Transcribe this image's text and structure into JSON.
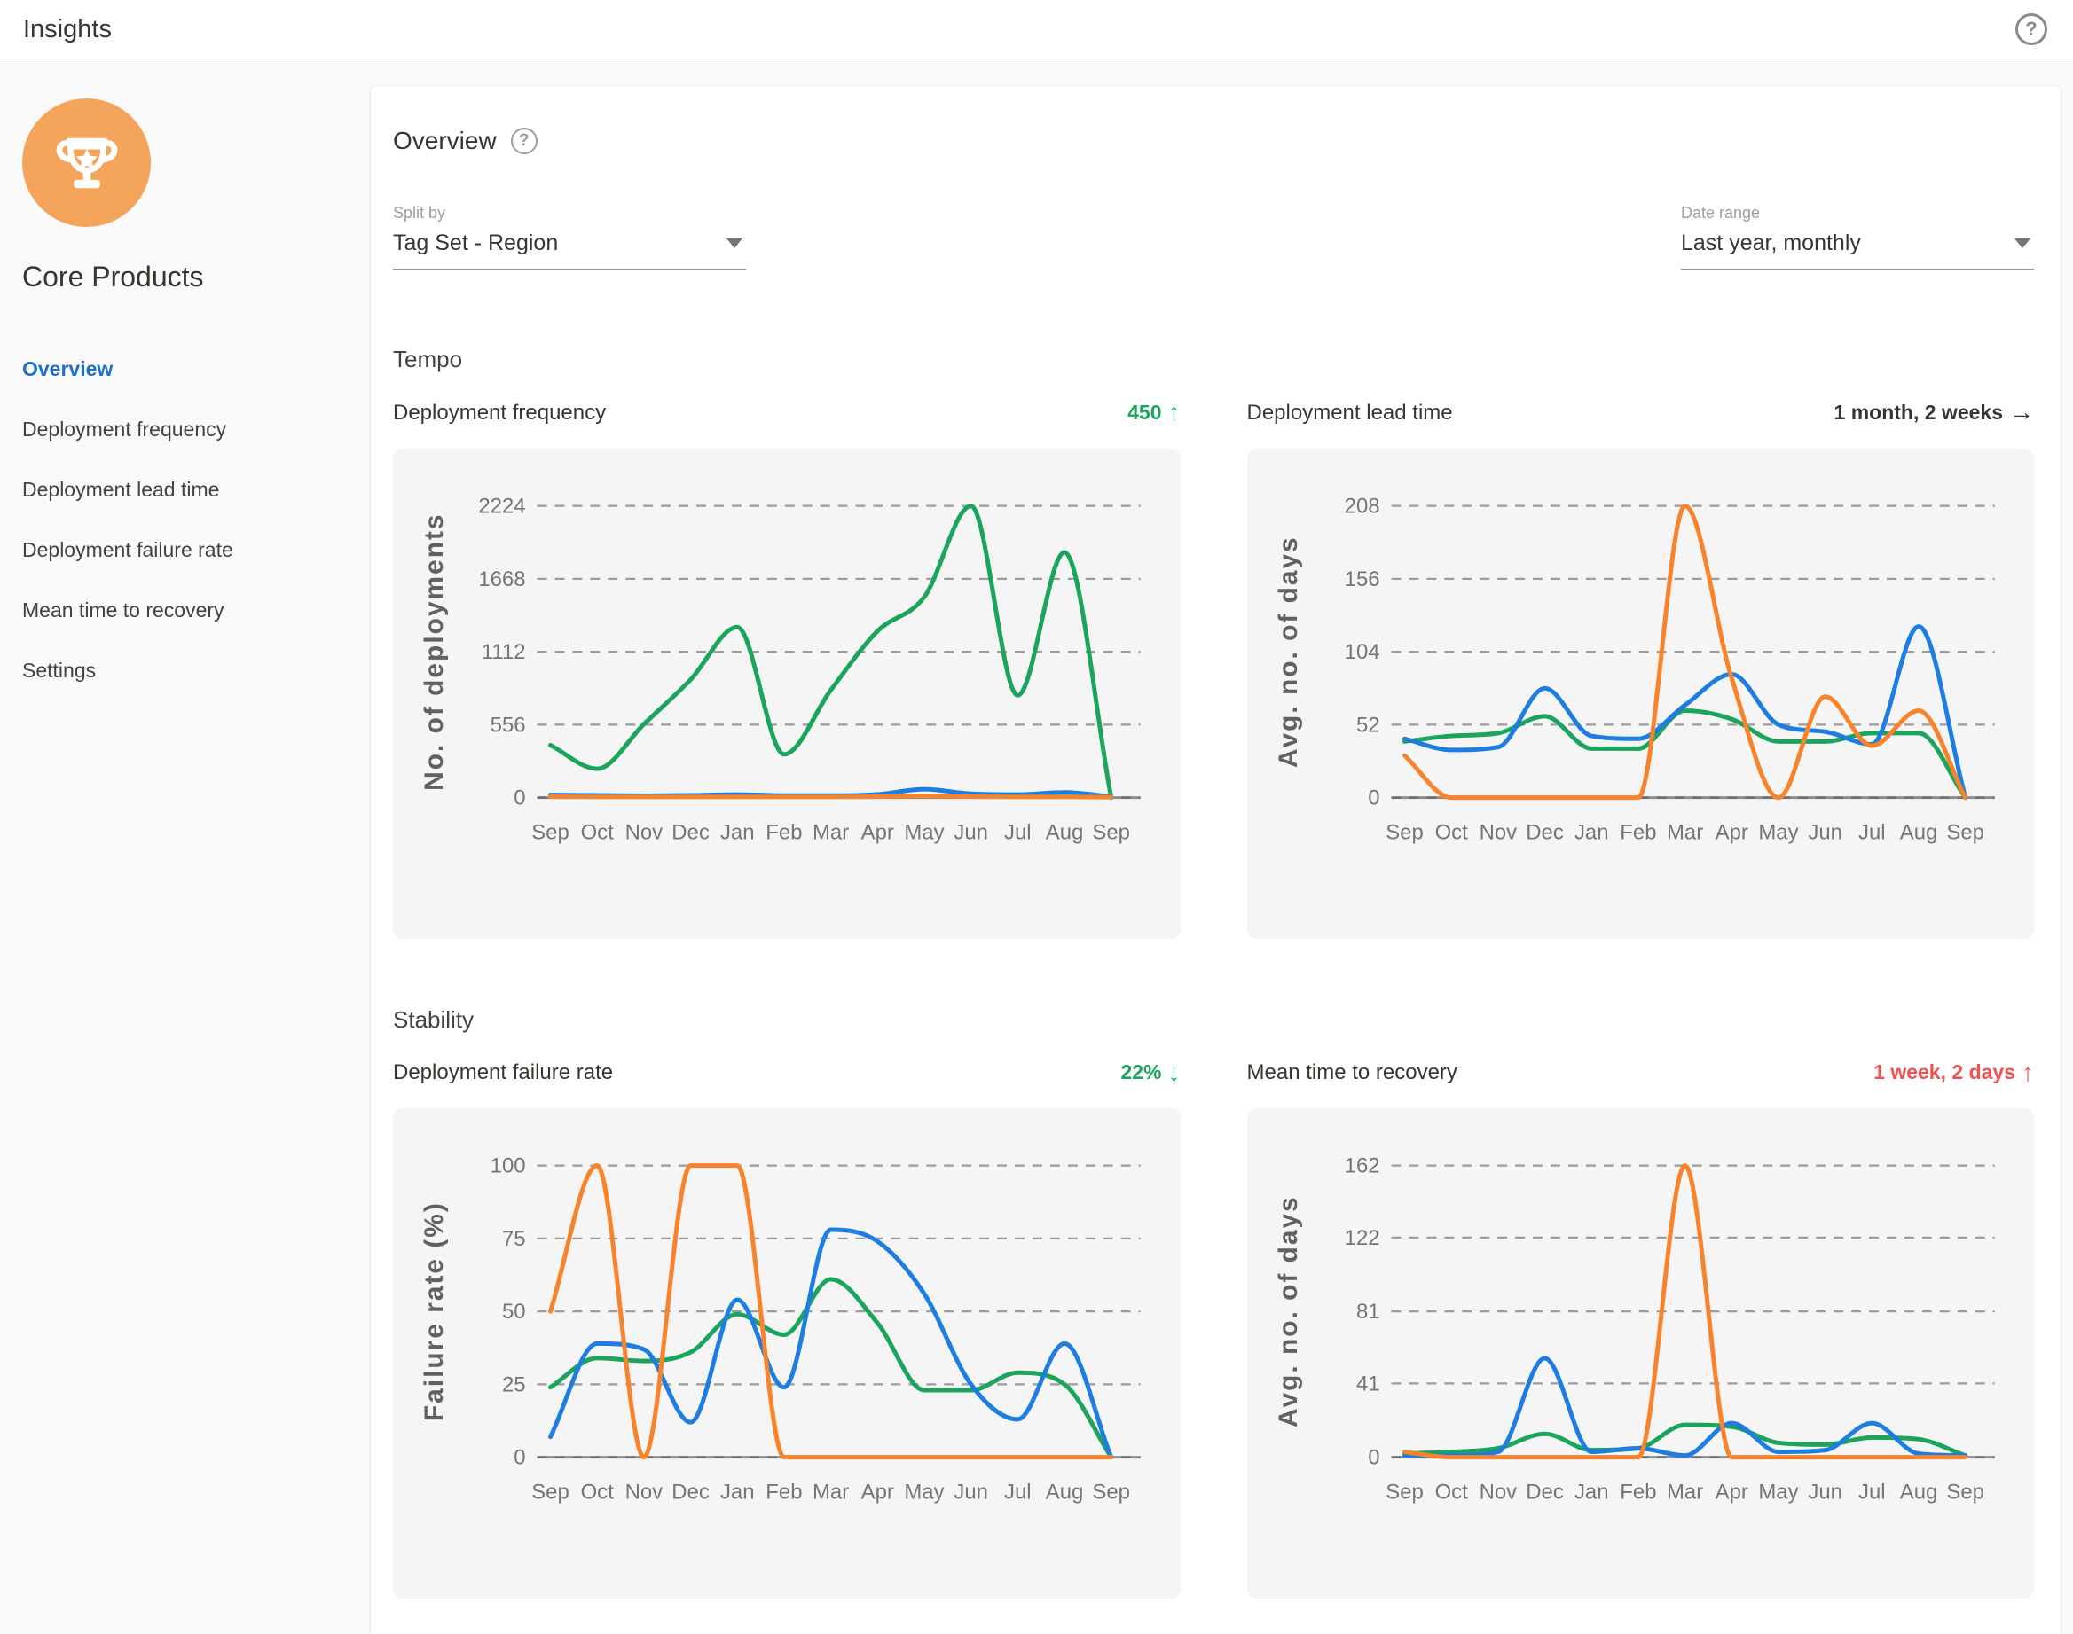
{
  "header": {
    "title": "Insights"
  },
  "sidebar": {
    "title": "Core Products",
    "items": [
      {
        "label": "Overview",
        "active": true
      },
      {
        "label": "Deployment frequency",
        "active": false
      },
      {
        "label": "Deployment lead time",
        "active": false
      },
      {
        "label": "Deployment failure rate",
        "active": false
      },
      {
        "label": "Mean time to recovery",
        "active": false
      },
      {
        "label": "Settings",
        "active": false
      }
    ]
  },
  "overview": {
    "title": "Overview",
    "filters": {
      "split_by": {
        "label": "Split by",
        "value": "Tag Set - Region"
      },
      "date_range": {
        "label": "Date range",
        "value": "Last year, monthly"
      }
    },
    "sections": {
      "tempo": "Tempo",
      "stability": "Stability"
    }
  },
  "palette": {
    "green": "#1aa45c",
    "blue": "#1d7de3",
    "orange": "#f8832b",
    "red": "#ef5252",
    "dark": "#37352f",
    "active_nav": "#1c6fcd",
    "avatar_orange": "#f5a45c"
  },
  "chart_data": [
    {
      "type": "line",
      "section": "Tempo",
      "title": "Deployment frequency",
      "metric": {
        "value": "450",
        "arrow": "↑",
        "color": "#1aa45c"
      },
      "ylabel": "No. of deployments",
      "ylim": [
        0,
        2224
      ],
      "yticks": [
        0,
        556,
        1112,
        1668,
        2224
      ],
      "grid": "dashed-horizontal",
      "legend": false,
      "categories": [
        "Sep",
        "Oct",
        "Nov",
        "Dec",
        "Jan",
        "Feb",
        "Mar",
        "Apr",
        "May",
        "Jun",
        "Jul",
        "Aug",
        "Sep"
      ],
      "series": [
        {
          "name": "green",
          "color": "#1aa45c",
          "values": [
            400,
            220,
            560,
            900,
            1300,
            330,
            820,
            1270,
            1530,
            2224,
            780,
            1870,
            0
          ]
        },
        {
          "name": "blue",
          "color": "#1d7de3",
          "values": [
            20,
            18,
            15,
            18,
            24,
            16,
            16,
            25,
            65,
            30,
            24,
            40,
            8
          ]
        },
        {
          "name": "orange",
          "color": "#f8832b",
          "values": [
            8,
            6,
            6,
            6,
            6,
            6,
            6,
            8,
            10,
            8,
            6,
            6,
            4
          ]
        }
      ]
    },
    {
      "type": "line",
      "section": "Tempo",
      "title": "Deployment lead time",
      "metric": {
        "value": "1 month, 2 weeks",
        "arrow": "→",
        "color": "#37352f"
      },
      "ylabel": "Avg. no. of days",
      "ylim": [
        0,
        208
      ],
      "yticks": [
        0,
        52,
        104,
        156,
        208
      ],
      "grid": "dashed-horizontal",
      "legend": false,
      "categories": [
        "Sep",
        "Oct",
        "Nov",
        "Dec",
        "Jan",
        "Feb",
        "Mar",
        "Apr",
        "May",
        "Jun",
        "Jul",
        "Aug",
        "Sep"
      ],
      "series": [
        {
          "name": "green",
          "color": "#1aa45c",
          "values": [
            40,
            44,
            46,
            58,
            35,
            35,
            62,
            56,
            40,
            40,
            46,
            46,
            0
          ]
        },
        {
          "name": "blue",
          "color": "#1d7de3",
          "values": [
            42,
            34,
            36,
            78,
            44,
            42,
            66,
            88,
            52,
            47,
            38,
            122,
            0
          ]
        },
        {
          "name": "orange",
          "color": "#f8832b",
          "values": [
            30,
            0,
            0,
            0,
            0,
            0,
            208,
            85,
            0,
            72,
            37,
            62,
            0
          ]
        }
      ]
    },
    {
      "type": "line",
      "section": "Stability",
      "title": "Deployment failure rate",
      "metric": {
        "value": "22%",
        "arrow": "↓",
        "color": "#1aa45c"
      },
      "ylabel": "Failure rate (%)",
      "ylim": [
        0,
        100
      ],
      "yticks": [
        0,
        25,
        50,
        75,
        100
      ],
      "grid": "dashed-horizontal",
      "legend": false,
      "categories": [
        "Sep",
        "Oct",
        "Nov",
        "Dec",
        "Jan",
        "Feb",
        "Mar",
        "Apr",
        "May",
        "Jun",
        "Jul",
        "Aug",
        "Sep"
      ],
      "series": [
        {
          "name": "green",
          "color": "#1aa45c",
          "values": [
            24,
            34,
            33,
            36,
            49,
            42,
            61,
            46,
            23,
            23,
            29,
            25,
            0
          ]
        },
        {
          "name": "blue",
          "color": "#1d7de3",
          "values": [
            7,
            39,
            37,
            12,
            54,
            24,
            78,
            74,
            56,
            25,
            13,
            39,
            0
          ]
        },
        {
          "name": "orange",
          "color": "#f8832b",
          "values": [
            50,
            100,
            0,
            100,
            100,
            0,
            0,
            0,
            0,
            0,
            0,
            0,
            0
          ]
        }
      ]
    },
    {
      "type": "line",
      "section": "Stability",
      "title": "Mean time to recovery",
      "metric": {
        "value": "1 week, 2 days",
        "arrow": "↑",
        "color": "#ef5252"
      },
      "ylabel": "Avg. no. of days",
      "ylim": [
        0,
        162
      ],
      "yticks": [
        0,
        41,
        81,
        122,
        162
      ],
      "grid": "dashed-horizontal",
      "legend": false,
      "categories": [
        "Sep",
        "Oct",
        "Nov",
        "Dec",
        "Jan",
        "Feb",
        "Mar",
        "Apr",
        "May",
        "Jun",
        "Jul",
        "Aug",
        "Sep"
      ],
      "series": [
        {
          "name": "green",
          "color": "#1aa45c",
          "values": [
            2,
            3,
            5,
            13,
            4,
            5,
            18,
            17,
            8,
            7,
            11,
            10,
            1
          ]
        },
        {
          "name": "blue",
          "color": "#1d7de3",
          "values": [
            1,
            1,
            3,
            55,
            3,
            5,
            1,
            19,
            3,
            4,
            19,
            2,
            1
          ]
        },
        {
          "name": "orange",
          "color": "#f8832b",
          "values": [
            3,
            0,
            0,
            0,
            0,
            0,
            162,
            0,
            0,
            0,
            0,
            0,
            0
          ]
        }
      ]
    }
  ]
}
